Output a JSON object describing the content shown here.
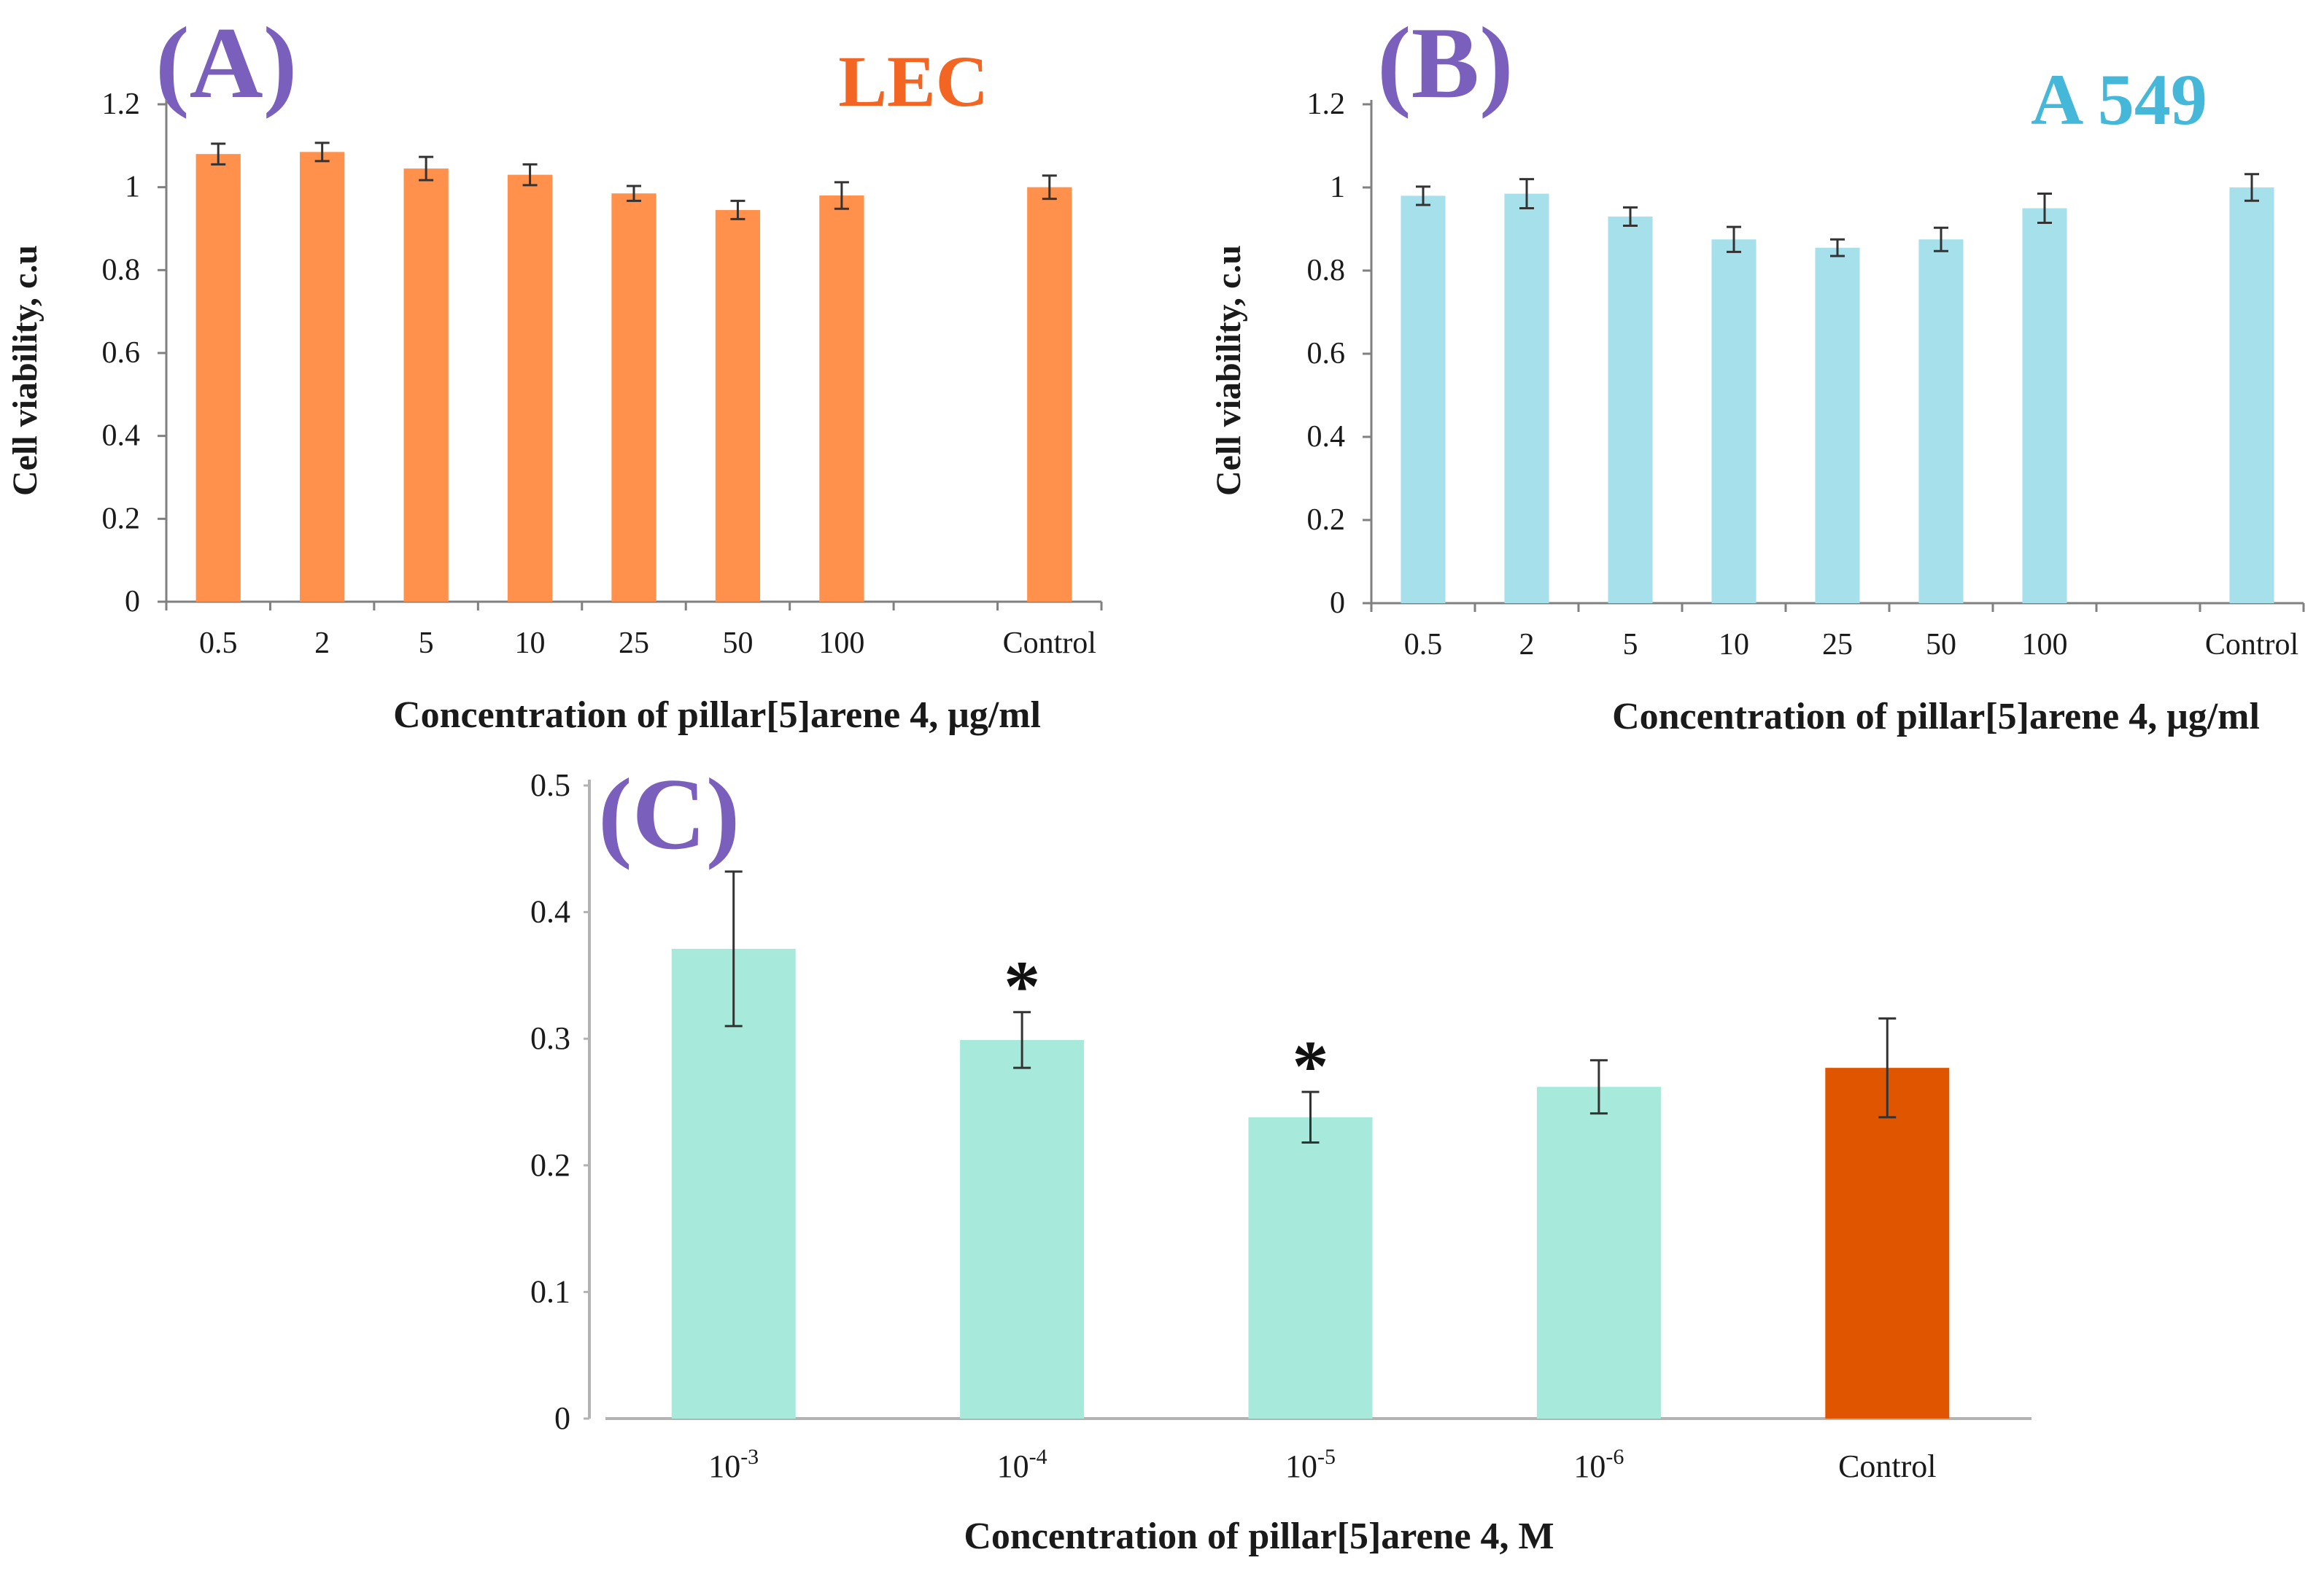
{
  "colors": {
    "panel_label": "#7b5fbd",
    "lec_bar": "#ff914d",
    "lec_title": "#f26522",
    "a549_bar": "#a6e0eb",
    "a549_title": "#45b8d9",
    "c_bar": "#a7eadb",
    "c_control": "#e05500",
    "axis": "#808080",
    "error": "#333333",
    "text": "#1a1a1a"
  },
  "chart_data": [
    {
      "type": "bar",
      "panel_label": "(A)",
      "title": "LEC",
      "xlabel": "Concentration of pillar[5]arene 4, μg/ml",
      "ylabel": "Cell viability, c.u",
      "categories": [
        "0.5",
        "2",
        "5",
        "10",
        "25",
        "50",
        "100",
        "Control"
      ],
      "slot_index": [
        0,
        1,
        2,
        3,
        4,
        5,
        6,
        8
      ],
      "slot_count": 9,
      "values": [
        1.08,
        1.085,
        1.045,
        1.03,
        0.985,
        0.945,
        0.98,
        1.0
      ],
      "errors": [
        0.025,
        0.022,
        0.028,
        0.025,
        0.018,
        0.022,
        0.032,
        0.028
      ],
      "ylim": [
        0,
        1.2
      ],
      "yticks": [
        "0",
        "0.2",
        "0.4",
        "0.6",
        "0.8",
        "1",
        "1.2"
      ],
      "ytick_values": [
        0,
        0.2,
        0.4,
        0.6,
        0.8,
        1.0,
        1.2
      ]
    },
    {
      "type": "bar",
      "panel_label": "(B)",
      "title": "A 549",
      "xlabel": "Concentration of pillar[5]arene 4, μg/ml",
      "ylabel": "Cell viability, c.u",
      "categories": [
        "0.5",
        "2",
        "5",
        "10",
        "25",
        "50",
        "100",
        "Control"
      ],
      "slot_index": [
        0,
        1,
        2,
        3,
        4,
        5,
        6,
        8
      ],
      "slot_count": 9,
      "values": [
        0.98,
        0.985,
        0.93,
        0.875,
        0.855,
        0.875,
        0.95,
        1.0
      ],
      "errors": [
        0.022,
        0.035,
        0.022,
        0.03,
        0.02,
        0.028,
        0.035,
        0.032
      ],
      "ylim": [
        0,
        1.2
      ],
      "yticks": [
        "0",
        "0.2",
        "0.4",
        "0.6",
        "0.8",
        "1",
        "1.2"
      ],
      "ytick_values": [
        0,
        0.2,
        0.4,
        0.6,
        0.8,
        1.0,
        1.2
      ]
    },
    {
      "type": "bar",
      "panel_label": "(C)",
      "title": "",
      "xlabel": "Concentration of pillar[5]arene 4, M",
      "ylabel": "",
      "categories": [
        {
          "base": "10",
          "exp": "-3"
        },
        {
          "base": "10",
          "exp": "-4"
        },
        {
          "base": "10",
          "exp": "-5"
        },
        {
          "base": "10",
          "exp": "-6"
        },
        {
          "base": "Control",
          "exp": ""
        }
      ],
      "values": [
        0.371,
        0.299,
        0.238,
        0.262,
        0.277
      ],
      "errors": [
        0.061,
        0.022,
        0.02,
        0.021,
        0.039
      ],
      "significance": [
        "",
        "*",
        "*",
        "",
        ""
      ],
      "ylim": [
        0,
        0.5
      ],
      "yticks": [
        "0",
        "0.1",
        "0.2",
        "0.3",
        "0.4",
        "0.5"
      ],
      "ytick_values": [
        0,
        0.1,
        0.2,
        0.3,
        0.4,
        0.5
      ]
    }
  ]
}
